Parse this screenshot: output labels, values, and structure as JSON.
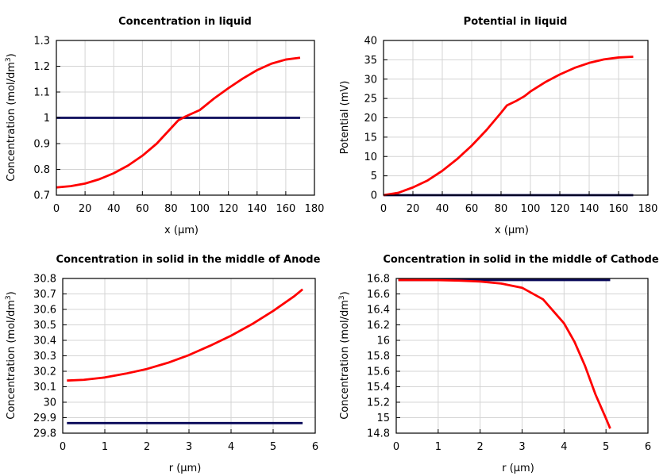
{
  "chart_data": [
    {
      "type": "line",
      "title": "Concentration in liquid",
      "xlabel": "x (μm)",
      "ylabel": "Concentration (mol/dm³)",
      "xlim": [
        0,
        180
      ],
      "ylim": [
        0.7,
        1.3
      ],
      "xticks": [
        "0",
        "20",
        "40",
        "60",
        "80",
        "100",
        "120",
        "140",
        "160",
        "180"
      ],
      "yticks": [
        "0.7",
        "0.8",
        "0.9",
        "1",
        "1.1",
        "1.2",
        "1.3"
      ],
      "grid": true,
      "series": [
        {
          "color": "#0a0a5a",
          "x": [
            0,
            170
          ],
          "y": [
            1.0,
            1.0
          ]
        },
        {
          "color": "#ff0000",
          "x": [
            0,
            10,
            20,
            30,
            40,
            50,
            60,
            70,
            80,
            85,
            90,
            100,
            110,
            120,
            130,
            140,
            150,
            160,
            170
          ],
          "y": [
            0.73,
            0.735,
            0.745,
            0.762,
            0.785,
            0.815,
            0.853,
            0.9,
            0.96,
            0.99,
            1.005,
            1.03,
            1.075,
            1.115,
            1.152,
            1.185,
            1.21,
            1.226,
            1.233
          ]
        }
      ]
    },
    {
      "type": "line",
      "title": "Potential in liquid",
      "xlabel": "x (μm)",
      "ylabel": "Potential (mV)",
      "xlim": [
        0,
        180
      ],
      "ylim": [
        0,
        40
      ],
      "xticks": [
        "0",
        "20",
        "40",
        "60",
        "80",
        "100",
        "120",
        "140",
        "160",
        "180"
      ],
      "yticks": [
        "0",
        "5",
        "10",
        "15",
        "20",
        "25",
        "30",
        "35",
        "40"
      ],
      "grid": true,
      "series": [
        {
          "color": "#0a0a5a",
          "x": [
            0,
            170
          ],
          "y": [
            0,
            0
          ]
        },
        {
          "color": "#ff0000",
          "x": [
            0,
            10,
            20,
            30,
            40,
            50,
            60,
            70,
            80,
            84,
            90,
            96,
            100,
            110,
            120,
            130,
            140,
            150,
            160,
            170
          ],
          "y": [
            0,
            0.6,
            2.0,
            3.8,
            6.3,
            9.3,
            12.8,
            16.8,
            21.3,
            23.2,
            24.3,
            25.6,
            26.8,
            29.2,
            31.2,
            32.9,
            34.2,
            35.1,
            35.6,
            35.8
          ]
        }
      ]
    },
    {
      "type": "line",
      "title": "Concentration in solid in the middle of Anode",
      "xlabel": "r (μm)",
      "ylabel": "Concentration (mol/dm³)",
      "xlim": [
        0,
        6
      ],
      "ylim": [
        29.8,
        30.8
      ],
      "xticks": [
        "0",
        "1",
        "2",
        "3",
        "4",
        "5",
        "6"
      ],
      "yticks": [
        "29.8",
        "29.9",
        "30",
        "30.1",
        "30.2",
        "30.3",
        "30.4",
        "30.5",
        "30.6",
        "30.7",
        "30.8"
      ],
      "grid": true,
      "series": [
        {
          "color": "#0a0a5a",
          "x": [
            0.1,
            5.7
          ],
          "y": [
            29.865,
            29.865
          ]
        },
        {
          "color": "#ff0000",
          "x": [
            0.1,
            0.5,
            1.0,
            1.5,
            2.0,
            2.5,
            3.0,
            3.5,
            4.0,
            4.5,
            5.0,
            5.5,
            5.7
          ],
          "y": [
            30.14,
            30.145,
            30.16,
            30.185,
            30.215,
            30.255,
            30.305,
            30.365,
            30.43,
            30.505,
            30.59,
            30.685,
            30.73
          ]
        }
      ]
    },
    {
      "type": "line",
      "title": "Concentration in solid in the middle of Cathode",
      "xlabel": "r (μm)",
      "ylabel": "Concentration (mol/dm³)",
      "xlim": [
        0,
        6
      ],
      "ylim": [
        14.8,
        16.8
      ],
      "xticks": [
        "0",
        "1",
        "2",
        "3",
        "4",
        "5",
        "6"
      ],
      "yticks": [
        "14.8",
        "15",
        "15.2",
        "15.4",
        "15.6",
        "15.8",
        "16",
        "16.2",
        "16.4",
        "16.6",
        "16.8"
      ],
      "grid": true,
      "series": [
        {
          "color": "#0a0a5a",
          "x": [
            0.05,
            5.1
          ],
          "y": [
            16.78,
            16.78
          ]
        },
        {
          "color": "#ff0000",
          "x": [
            0.05,
            0.5,
            1.0,
            1.5,
            2.0,
            2.5,
            3.0,
            3.5,
            4.0,
            4.25,
            4.5,
            4.75,
            5.0,
            5.1
          ],
          "y": [
            16.78,
            16.78,
            16.778,
            16.772,
            16.76,
            16.735,
            16.68,
            16.53,
            16.22,
            15.98,
            15.67,
            15.3,
            14.99,
            14.86
          ]
        }
      ]
    }
  ]
}
